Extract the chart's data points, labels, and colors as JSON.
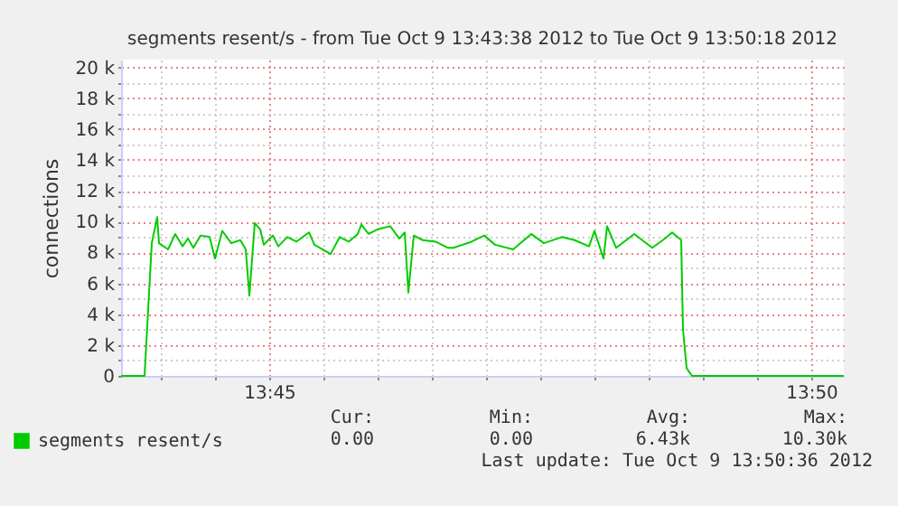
{
  "chart_data": {
    "type": "line",
    "title": "segments resent/s - from Tue Oct  9 13:43:38 2012 to Tue Oct  9 13:50:18 2012",
    "ylabel": "connections",
    "x": [
      "2012-10-09T13:43:38",
      "2012-10-09T13:43:51",
      "2012-10-09T13:43:55",
      "2012-10-09T13:43:58",
      "2012-10-09T13:43:59",
      "2012-10-09T13:44:04",
      "2012-10-09T13:44:08",
      "2012-10-09T13:44:12",
      "2012-10-09T13:44:15",
      "2012-10-09T13:44:18",
      "2012-10-09T13:44:22",
      "2012-10-09T13:44:27",
      "2012-10-09T13:44:30",
      "2012-10-09T13:44:34",
      "2012-10-09T13:44:39",
      "2012-10-09T13:44:44",
      "2012-10-09T13:44:47",
      "2012-10-09T13:44:49",
      "2012-10-09T13:44:52",
      "2012-10-09T13:44:55",
      "2012-10-09T13:44:57",
      "2012-10-09T13:45:02",
      "2012-10-09T13:45:05",
      "2012-10-09T13:45:10",
      "2012-10-09T13:45:15",
      "2012-10-09T13:45:22",
      "2012-10-09T13:45:25",
      "2012-10-09T13:45:34",
      "2012-10-09T13:45:39",
      "2012-10-09T13:45:44",
      "2012-10-09T13:45:49",
      "2012-10-09T13:45:51",
      "2012-10-09T13:45:55",
      "2012-10-09T13:46:00",
      "2012-10-09T13:46:07",
      "2012-10-09T13:46:12",
      "2012-10-09T13:46:15",
      "2012-10-09T13:46:17",
      "2012-10-09T13:46:20",
      "2012-10-09T13:46:25",
      "2012-10-09T13:46:32",
      "2012-10-09T13:46:39",
      "2012-10-09T13:46:42",
      "2012-10-09T13:46:52",
      "2012-10-09T13:46:59",
      "2012-10-09T13:47:05",
      "2012-10-09T13:47:15",
      "2012-10-09T13:47:25",
      "2012-10-09T13:47:32",
      "2012-10-09T13:47:42",
      "2012-10-09T13:47:49",
      "2012-10-09T13:47:57",
      "2012-10-09T13:48:00",
      "2012-10-09T13:48:05",
      "2012-10-09T13:48:07",
      "2012-10-09T13:48:12",
      "2012-10-09T13:48:22",
      "2012-10-09T13:48:32",
      "2012-10-09T13:48:39",
      "2012-10-09T13:48:43",
      "2012-10-09T13:48:46",
      "2012-10-09T13:48:48",
      "2012-10-09T13:48:49",
      "2012-10-09T13:48:51",
      "2012-10-09T13:48:54",
      "2012-10-09T13:50:18"
    ],
    "series": [
      {
        "name": "segments resent/s",
        "color": "#00cc00",
        "values": [
          0,
          0,
          8600,
          10300,
          8600,
          8200,
          9200,
          8400,
          8900,
          8300,
          9100,
          9000,
          7600,
          9400,
          8600,
          8800,
          8200,
          5200,
          9900,
          9500,
          8500,
          9100,
          8400,
          9000,
          8700,
          9300,
          8500,
          7900,
          9000,
          8700,
          9200,
          9800,
          9200,
          9500,
          9700,
          8900,
          9300,
          5400,
          9100,
          8800,
          8700,
          8300,
          8300,
          8700,
          9100,
          8500,
          8200,
          9200,
          8600,
          9000,
          8800,
          8400,
          9400,
          7600,
          9700,
          8300,
          9200,
          8300,
          8900,
          9300,
          9000,
          8800,
          3000,
          500,
          0,
          0
        ]
      }
    ],
    "xlim": [
      "2012-10-09T13:43:38",
      "2012-10-09T13:50:18"
    ],
    "xticks": [
      {
        "value": "2012-10-09T13:44:00",
        "label": null
      },
      {
        "value": "2012-10-09T13:44:30",
        "label": null
      },
      {
        "value": "2012-10-09T13:45:00",
        "label": "13:45"
      },
      {
        "value": "2012-10-09T13:45:30",
        "label": null
      },
      {
        "value": "2012-10-09T13:46:00",
        "label": null
      },
      {
        "value": "2012-10-09T13:46:30",
        "label": null
      },
      {
        "value": "2012-10-09T13:47:00",
        "label": null
      },
      {
        "value": "2012-10-09T13:47:30",
        "label": null
      },
      {
        "value": "2012-10-09T13:48:00",
        "label": null
      },
      {
        "value": "2012-10-09T13:48:30",
        "label": null
      },
      {
        "value": "2012-10-09T13:49:00",
        "label": null
      },
      {
        "value": "2012-10-09T13:49:30",
        "label": null
      },
      {
        "value": "2012-10-09T13:50:00",
        "label": "13:50"
      }
    ],
    "ylim": [
      0,
      20500
    ],
    "yticks": [
      {
        "value": 0,
        "label": "0"
      },
      {
        "value": 1000,
        "label": null
      },
      {
        "value": 2000,
        "label": "2 k"
      },
      {
        "value": 3000,
        "label": null
      },
      {
        "value": 4000,
        "label": "4 k"
      },
      {
        "value": 5000,
        "label": null
      },
      {
        "value": 6000,
        "label": "6 k"
      },
      {
        "value": 7000,
        "label": null
      },
      {
        "value": 8000,
        "label": "8 k"
      },
      {
        "value": 9000,
        "label": null
      },
      {
        "value": 10000,
        "label": "10 k"
      },
      {
        "value": 11000,
        "label": null
      },
      {
        "value": 12000,
        "label": "12 k"
      },
      {
        "value": 13000,
        "label": null
      },
      {
        "value": 14000,
        "label": "14 k"
      },
      {
        "value": 15000,
        "label": null
      },
      {
        "value": 16000,
        "label": "16 k"
      },
      {
        "value": 17000,
        "label": null
      },
      {
        "value": 18000,
        "label": "18 k"
      },
      {
        "value": 19000,
        "label": null
      },
      {
        "value": 20000,
        "label": "20 k"
      }
    ],
    "grid": true,
    "legend": "bottom left",
    "annotations": [
      "Cur:",
      "Min:",
      "Avg:",
      "Max:",
      "0.00",
      "0.00",
      "6.43k",
      "10.30k",
      "Last update: Tue Oct  9 13:50:36 2012"
    ]
  }
}
